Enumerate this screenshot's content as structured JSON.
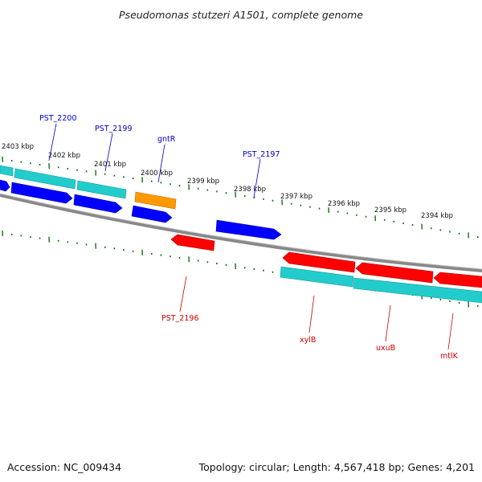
{
  "title": "Pseudomonas stutzeri A1501, complete genome",
  "footer": {
    "accession": "Accession: NC_009434",
    "topology": "Topology: circular; Length: 4,567,418 bp; Genes: 4,201"
  },
  "colors": {
    "backbone": "#808080",
    "ticks": "#107010",
    "forward_cds": "#0000ff",
    "reverse_cds": "#ff0000",
    "rna_gene": "#22cccc",
    "regulator": "#ff9900",
    "label_blue": "#0000cc",
    "label_red": "#cc0000"
  },
  "kbp_labels": [
    "2403 kbp",
    "2402 kbp",
    "2401 kbp",
    "2400 kbp",
    "2399 kbp",
    "2398 kbp",
    "2397 kbp",
    "2396 kbp",
    "2395 kbp",
    "2394 kbp"
  ],
  "gene_labels": {
    "forward": [
      "PST_2200",
      "PST_2199",
      "gntR",
      "PST_2197"
    ],
    "reverse": [
      "PST_2196",
      "xylB",
      "uxuB",
      "mtlK"
    ]
  }
}
